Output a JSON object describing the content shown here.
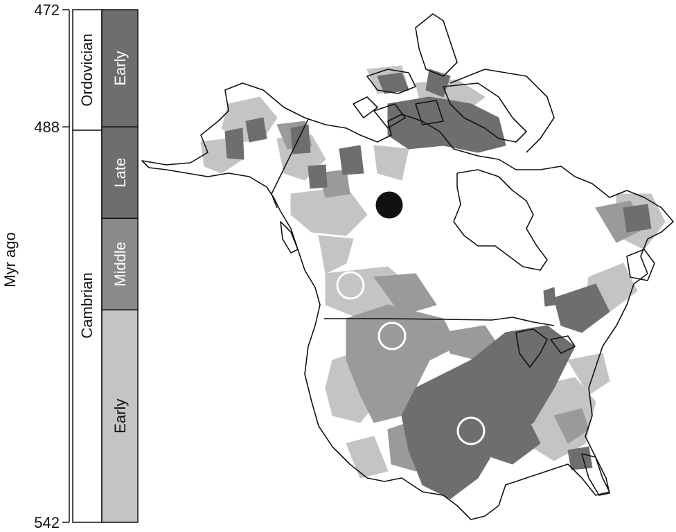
{
  "axis": {
    "title": "Myr ago",
    "ticks": [
      {
        "value": 472,
        "label": "472"
      },
      {
        "value": 488,
        "label": "488"
      },
      {
        "value": 542,
        "label": "542"
      }
    ]
  },
  "timescale": {
    "periods": [
      {
        "name": "Ordovician",
        "start": 472,
        "end": 488
      },
      {
        "name": "Cambrian",
        "start": 488,
        "end": 542
      }
    ],
    "epochs": [
      {
        "name": "Early",
        "start": 472,
        "end": 488,
        "color": "#6e6e6e"
      },
      {
        "name": "Late",
        "start": 488,
        "end": 500.5,
        "color": "#6e6e6e"
      },
      {
        "name": "Middle",
        "start": 500.5,
        "end": 513,
        "color": "#8a8a8a"
      },
      {
        "name": "Early",
        "start": 513,
        "end": 542,
        "color": "#c4c4c4"
      }
    ]
  },
  "map": {
    "region": "North America",
    "fill_shades": [
      "#c4c4c4",
      "#9a9a9a",
      "#6e6e6e"
    ],
    "markers": [
      {
        "type": "filled",
        "color": "#111111"
      },
      {
        "type": "open",
        "color": "#ffffff"
      },
      {
        "type": "open",
        "color": "#ffffff"
      },
      {
        "type": "open",
        "color": "#ffffff"
      }
    ]
  }
}
